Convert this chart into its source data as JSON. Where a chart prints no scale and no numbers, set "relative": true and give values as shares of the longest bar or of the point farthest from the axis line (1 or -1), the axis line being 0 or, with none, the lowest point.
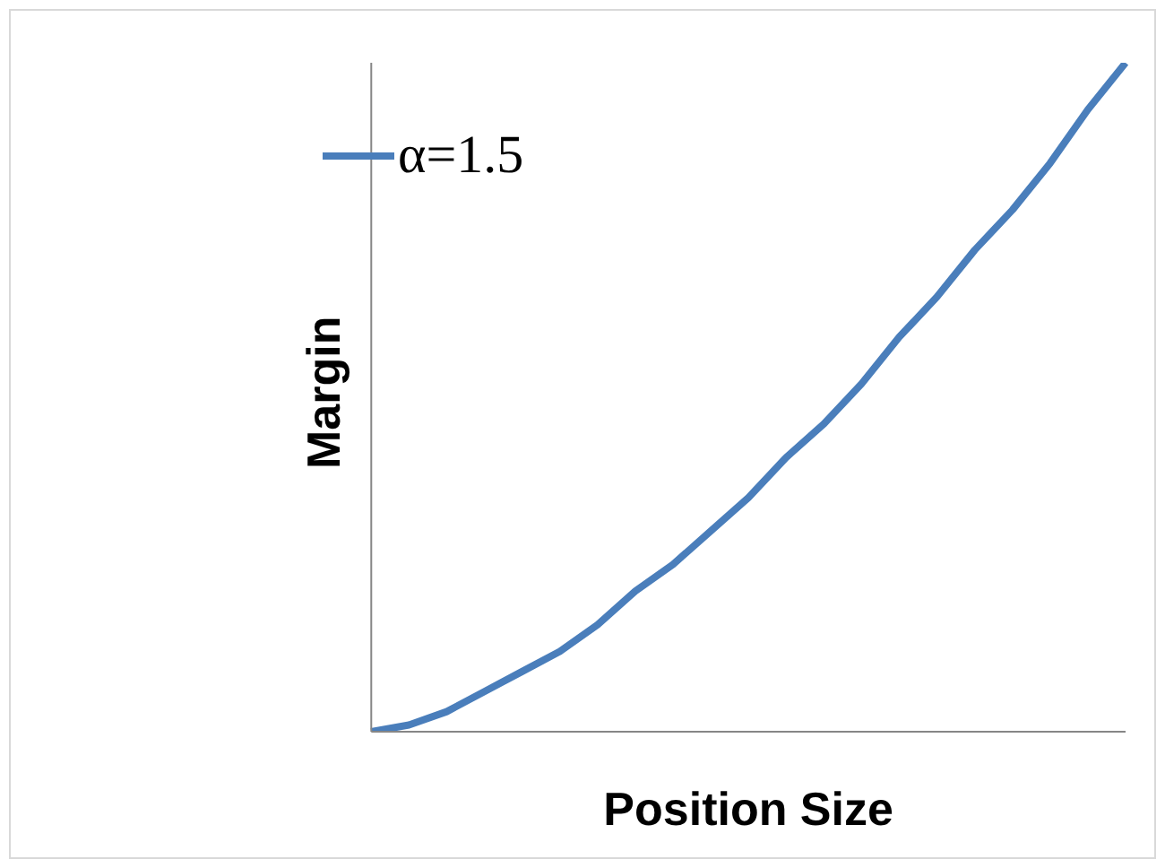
{
  "chart_data": {
    "type": "line",
    "relative": true,
    "xlabel": "Position Size",
    "ylabel": "Margin",
    "categories": [
      null,
      null,
      null,
      null,
      null,
      null,
      null,
      null,
      null,
      null,
      null,
      null,
      null,
      null,
      null,
      null,
      null,
      null,
      null,
      null,
      null
    ],
    "series": [
      {
        "name": "α=1.5",
        "color": "#4a7ebb",
        "values": [
          0,
          0.01,
          0.03,
          0.06,
          0.09,
          0.12,
          0.16,
          0.21,
          0.25,
          0.3,
          0.35,
          0.41,
          0.46,
          0.52,
          0.59,
          0.65,
          0.72,
          0.78,
          0.85,
          0.93,
          1
        ]
      }
    ],
    "legend": "top left",
    "marker": "none",
    "line_style": "solid"
  }
}
